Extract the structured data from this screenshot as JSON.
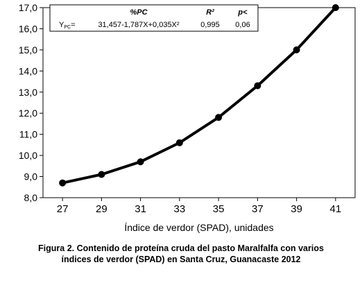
{
  "chart_data": {
    "type": "line",
    "xlabel": "Índice de verdor (SPAD), unidades",
    "ylabel": "",
    "xlim": [
      26,
      42
    ],
    "ylim": [
      8.0,
      17.0
    ],
    "x_ticks": [
      "27",
      "29",
      "31",
      "33",
      "35",
      "37",
      "39",
      "41"
    ],
    "y_ticks": [
      "8,0",
      "9,0",
      "10,0",
      "11,0",
      "12,0",
      "13,0",
      "14,0",
      "15,0",
      "16,0",
      "17,0"
    ],
    "grid": false,
    "series": [
      {
        "x": [
          27,
          29,
          31,
          33,
          35,
          37,
          39,
          41
        ],
        "y": [
          8.7,
          9.1,
          9.7,
          10.6,
          11.8,
          13.3,
          15.0,
          17.0
        ],
        "color": "#000000",
        "marker": "circle"
      }
    ],
    "legend_box": {
      "placement": "top",
      "header": {
        "pc": "%PC",
        "r2": "R²",
        "p": "p<"
      },
      "row": {
        "label_main": "Y",
        "label_sub": "PC",
        "label_eq": "=",
        "equation": "31,457-1,787X+0,035X²",
        "r2": "0,995",
        "p": "0,06"
      }
    }
  },
  "caption": {
    "line1": "Figura 2. Contenido de proteína cruda del pasto Maralfalfa con varios",
    "line2": "índices de verdor (SPAD) en Santa Cruz, Guanacaste 2012"
  }
}
